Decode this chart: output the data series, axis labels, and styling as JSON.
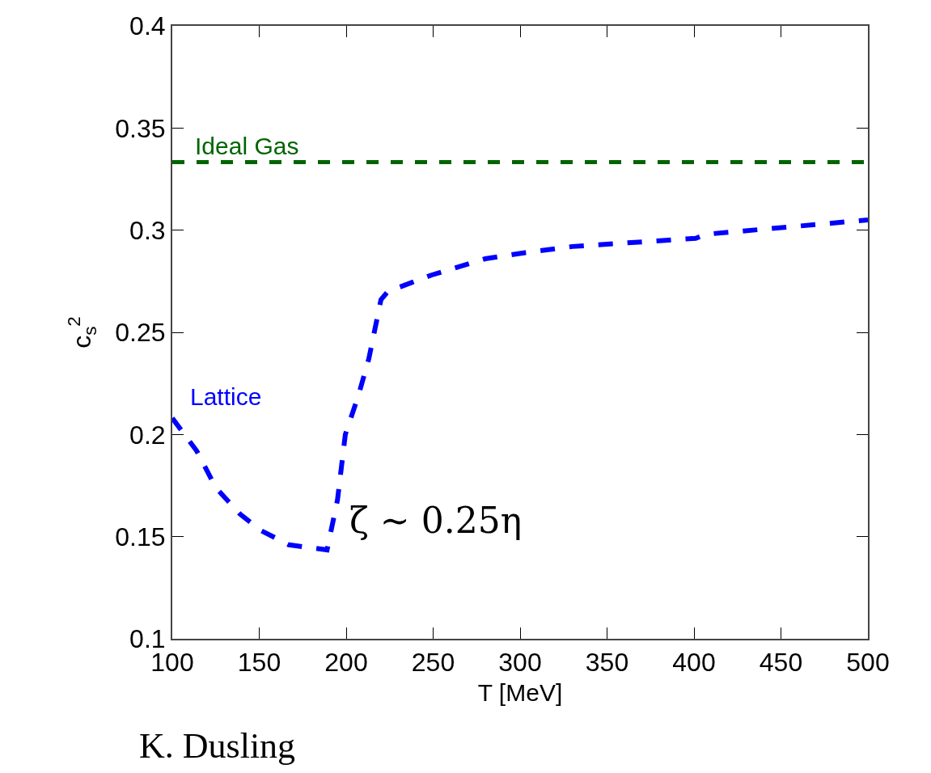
{
  "chart_data": {
    "type": "line",
    "xlabel": "T [MeV]",
    "ylabel": "c$_{s}$$^{2}$",
    "x": [
      100,
      114,
      125,
      139,
      151,
      167,
      189,
      195,
      199.5,
      207,
      213,
      220,
      224,
      249,
      280,
      303,
      330,
      401,
      407,
      500
    ],
    "series": [
      {
        "name": "Lattice",
        "color": "#0000ff",
        "values": [
          0.208,
          0.192,
          0.174,
          0.161,
          0.153,
          0.146,
          0.1435,
          0.168,
          0.2,
          0.219,
          0.237,
          0.266,
          0.27,
          0.278,
          0.286,
          0.289,
          0.292,
          0.296,
          0.298,
          0.305
        ]
      }
    ],
    "line_style": "dashed",
    "marker": "none",
    "legend": false,
    "xlim": [
      100,
      500
    ],
    "xticks": [
      100,
      150,
      200,
      250,
      300,
      350,
      400,
      450,
      500
    ],
    "ylim": [
      0.1,
      0.4
    ],
    "yticks": [
      0.1,
      0.15,
      0.2,
      0.25,
      0.3,
      0.35,
      0.4
    ],
    "ref_lines": [
      {
        "axis": "y",
        "value": 0.3333,
        "label": "Ideal Gas",
        "color": "#006400",
        "line_style": "dashed"
      }
    ],
    "annotations": [
      "ζ ∼ 0.25η",
      "K. Dusling"
    ]
  }
}
